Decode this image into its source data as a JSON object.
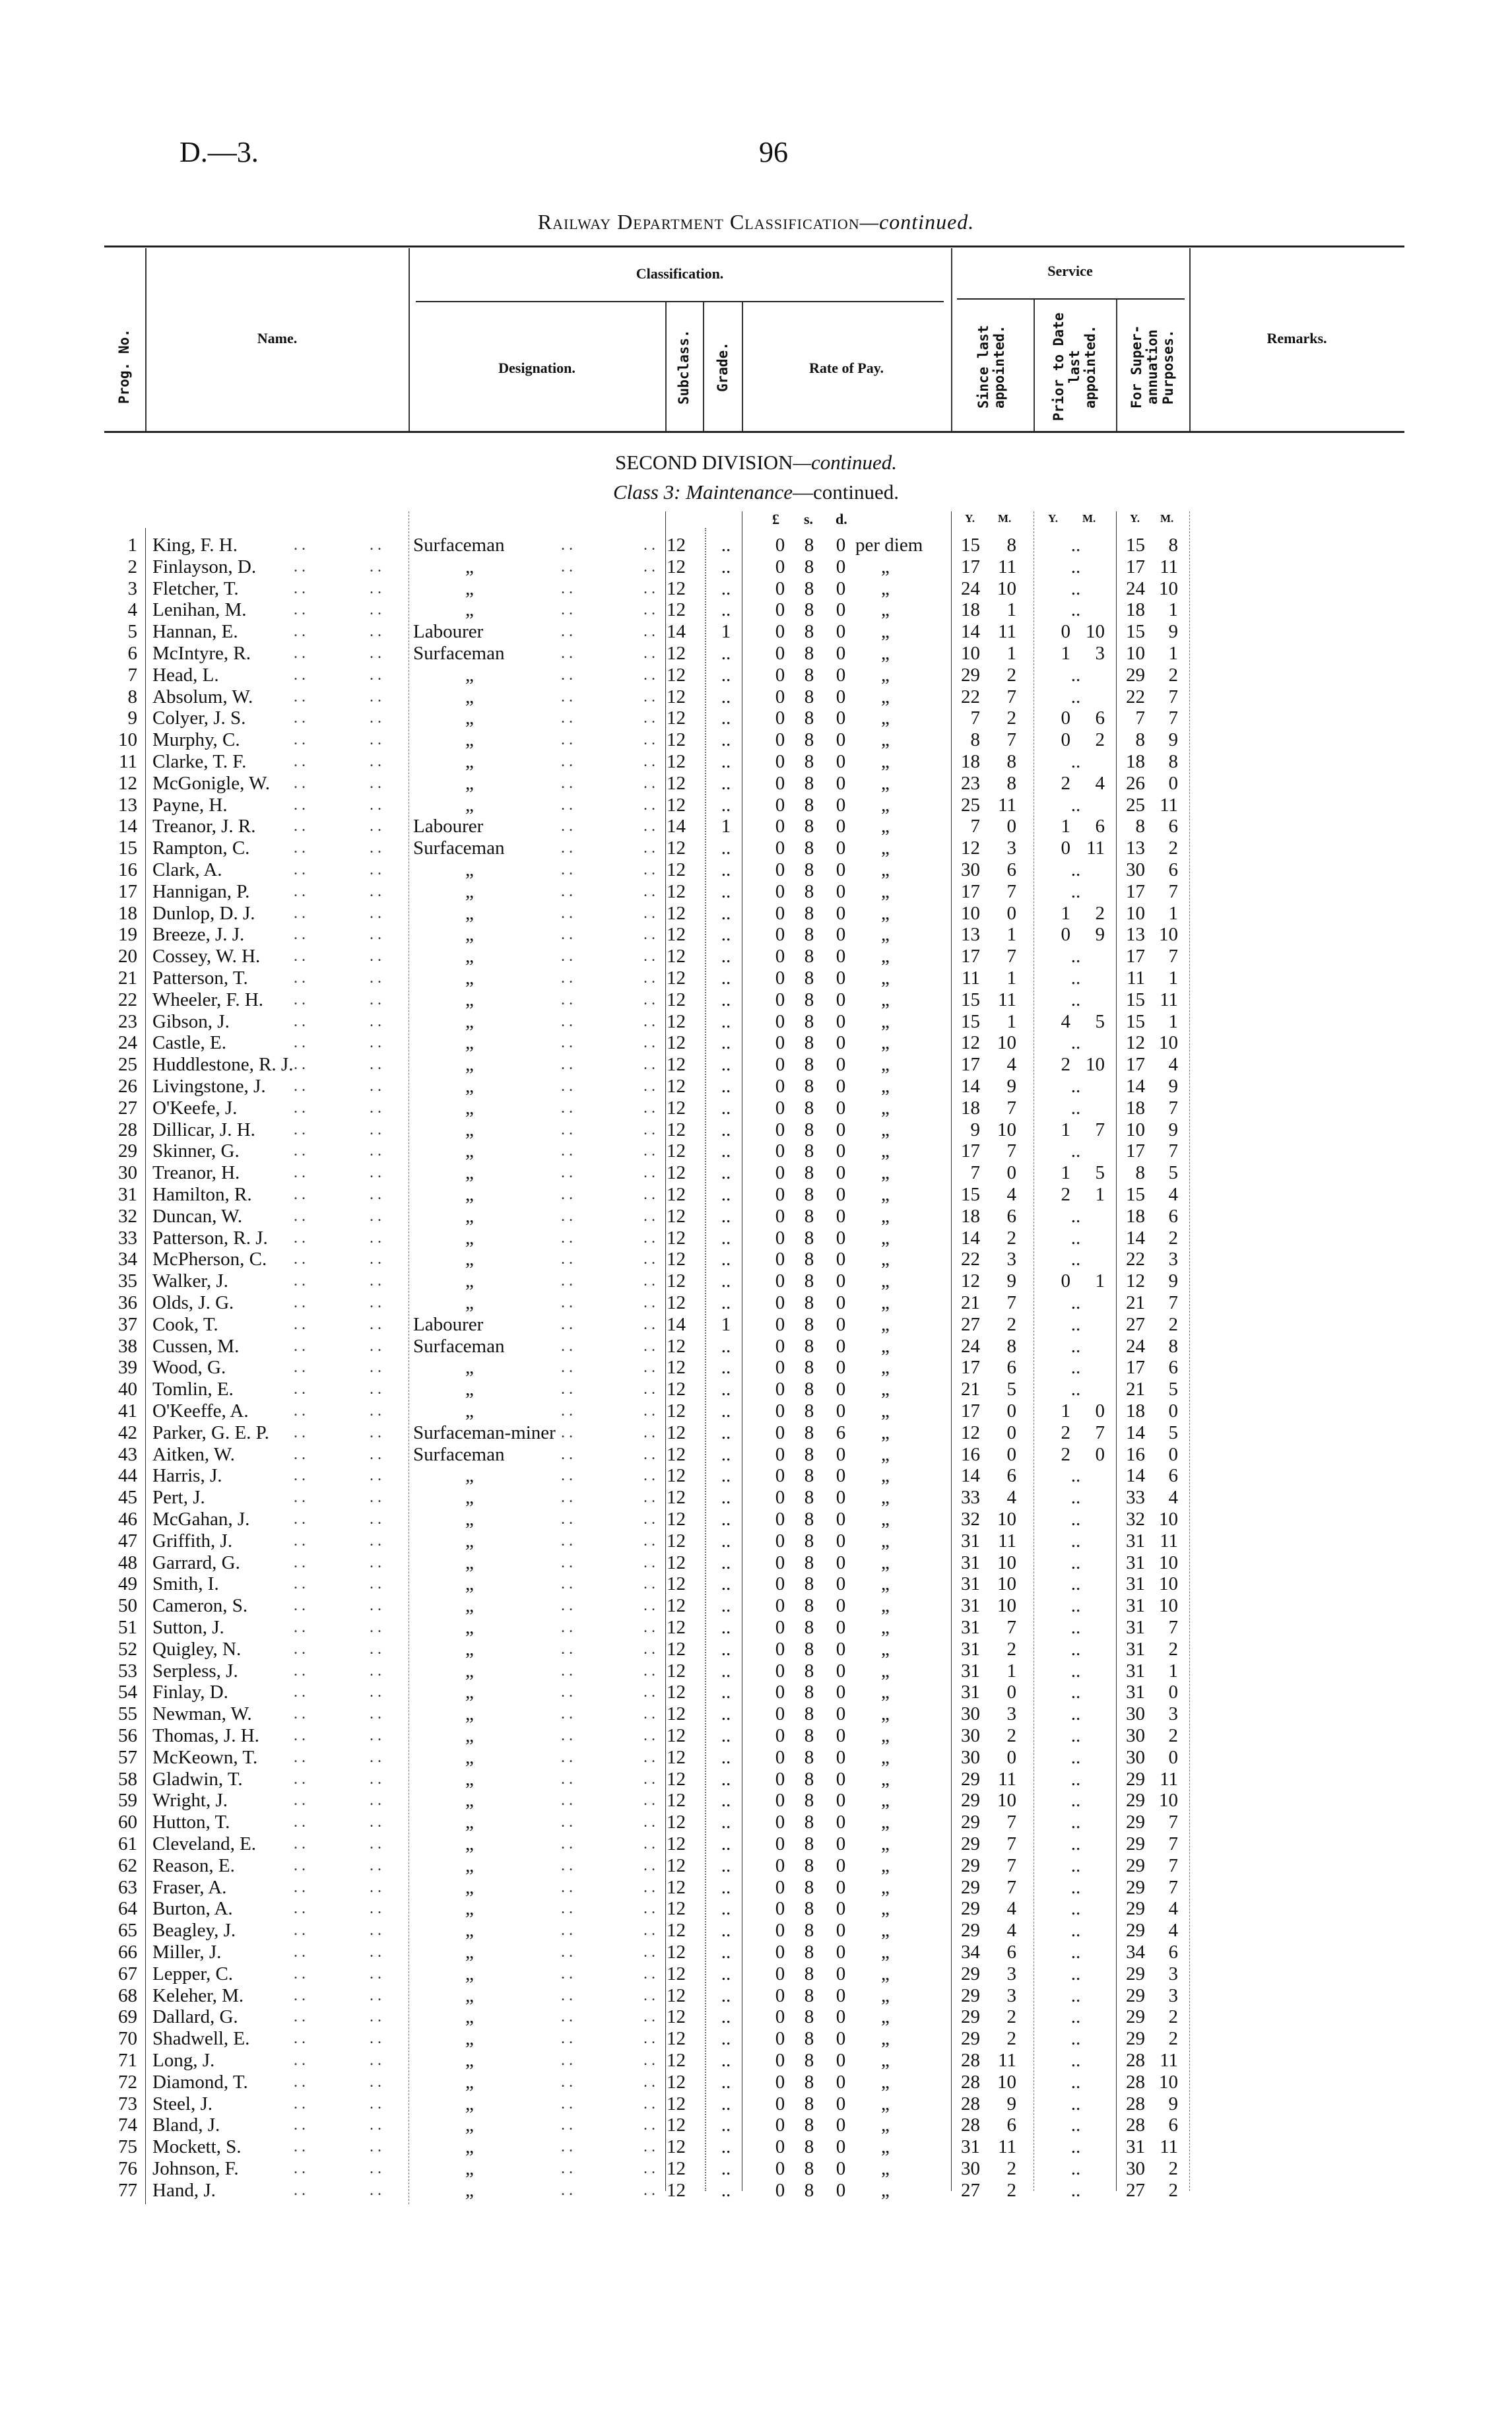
{
  "page_header": {
    "document_ref": "D.—3.",
    "page_number": "96"
  },
  "title": {
    "main": "Railway Department Classification",
    "suffix": "—continued."
  },
  "table_header": {
    "prog_no": "Prog. No.",
    "name": "Name.",
    "classification": "Classification.",
    "designation": "Designation.",
    "subclass": "Subclass.",
    "grade": "Grade.",
    "rate_of_pay": "Rate of Pay.",
    "service": "Service",
    "since_last": "Since last appointed.",
    "prior_to_date": "Prior to Date last appointed.",
    "for_superannuation": "For Super-annuation Purposes.",
    "remarks": "Remarks."
  },
  "section": {
    "division": "SECOND DIVISION",
    "division_suffix": "—continued.",
    "class_prefix": "Class 3:",
    "class_name": "Maintenance",
    "class_suffix": "—continued."
  },
  "units": {
    "pound": "£",
    "shilling": "s.",
    "pence": "d.",
    "years": "Y.",
    "months": "M."
  },
  "ditto": "„",
  "rows": [
    [
      "1",
      "King, F. H.",
      "Surfaceman",
      "12",
      "..",
      "0",
      "8",
      "0",
      "per diem",
      "15",
      "8",
      "..",
      "",
      "15",
      "8"
    ],
    [
      "2",
      "Finlayson, D.",
      "„",
      "12",
      "..",
      "0",
      "8",
      "0",
      "„",
      "17",
      "11",
      "..",
      "",
      "17",
      "11"
    ],
    [
      "3",
      "Fletcher, T.",
      "„",
      "12",
      "..",
      "0",
      "8",
      "0",
      "„",
      "24",
      "10",
      "..",
      "",
      "24",
      "10"
    ],
    [
      "4",
      "Lenihan, M.",
      "„",
      "12",
      "..",
      "0",
      "8",
      "0",
      "„",
      "18",
      "1",
      "..",
      "",
      "18",
      "1"
    ],
    [
      "5",
      "Hannan, E.",
      "Labourer",
      "14",
      "1",
      "0",
      "8",
      "0",
      "„",
      "14",
      "11",
      "0",
      "10",
      "15",
      "9"
    ],
    [
      "6",
      "McIntyre, R.",
      "Surfaceman",
      "12",
      "..",
      "0",
      "8",
      "0",
      "„",
      "10",
      "1",
      "1",
      "3",
      "10",
      "1"
    ],
    [
      "7",
      "Head, L.",
      "„",
      "12",
      "..",
      "0",
      "8",
      "0",
      "„",
      "29",
      "2",
      "..",
      "",
      "29",
      "2"
    ],
    [
      "8",
      "Absolum, W.",
      "„",
      "12",
      "..",
      "0",
      "8",
      "0",
      "„",
      "22",
      "7",
      "..",
      "",
      "22",
      "7"
    ],
    [
      "9",
      "Colyer, J. S.",
      "„",
      "12",
      "..",
      "0",
      "8",
      "0",
      "„",
      "7",
      "2",
      "0",
      "6",
      "7",
      "7"
    ],
    [
      "10",
      "Murphy, C.",
      "„",
      "12",
      "..",
      "0",
      "8",
      "0",
      "„",
      "8",
      "7",
      "0",
      "2",
      "8",
      "9"
    ],
    [
      "11",
      "Clarke, T. F.",
      "„",
      "12",
      "..",
      "0",
      "8",
      "0",
      "„",
      "18",
      "8",
      "..",
      "",
      "18",
      "8"
    ],
    [
      "12",
      "McGonigle, W.",
      "„",
      "12",
      "..",
      "0",
      "8",
      "0",
      "„",
      "23",
      "8",
      "2",
      "4",
      "26",
      "0"
    ],
    [
      "13",
      "Payne, H.",
      "„",
      "12",
      "..",
      "0",
      "8",
      "0",
      "„",
      "25",
      "11",
      "..",
      "",
      "25",
      "11"
    ],
    [
      "14",
      "Treanor, J. R.",
      "Labourer",
      "14",
      "1",
      "0",
      "8",
      "0",
      "„",
      "7",
      "0",
      "1",
      "6",
      "8",
      "6"
    ],
    [
      "15",
      "Rampton, C.",
      "Surfaceman",
      "12",
      "..",
      "0",
      "8",
      "0",
      "„",
      "12",
      "3",
      "0",
      "11",
      "13",
      "2"
    ],
    [
      "16",
      "Clark, A.",
      "„",
      "12",
      "..",
      "0",
      "8",
      "0",
      "„",
      "30",
      "6",
      "..",
      "",
      "30",
      "6"
    ],
    [
      "17",
      "Hannigan, P.",
      "„",
      "12",
      "..",
      "0",
      "8",
      "0",
      "„",
      "17",
      "7",
      "..",
      "",
      "17",
      "7"
    ],
    [
      "18",
      "Dunlop, D. J.",
      "„",
      "12",
      "..",
      "0",
      "8",
      "0",
      "„",
      "10",
      "0",
      "1",
      "2",
      "10",
      "1"
    ],
    [
      "19",
      "Breeze, J. J.",
      "„",
      "12",
      "..",
      "0",
      "8",
      "0",
      "„",
      "13",
      "1",
      "0",
      "9",
      "13",
      "10"
    ],
    [
      "20",
      "Cossey, W. H.",
      "„",
      "12",
      "..",
      "0",
      "8",
      "0",
      "„",
      "17",
      "7",
      "..",
      "",
      "17",
      "7"
    ],
    [
      "21",
      "Patterson, T.",
      "„",
      "12",
      "..",
      "0",
      "8",
      "0",
      "„",
      "11",
      "1",
      "..",
      "",
      "11",
      "1"
    ],
    [
      "22",
      "Wheeler, F. H.",
      "„",
      "12",
      "..",
      "0",
      "8",
      "0",
      "„",
      "15",
      "11",
      "..",
      "",
      "15",
      "11"
    ],
    [
      "23",
      "Gibson, J.",
      "„",
      "12",
      "..",
      "0",
      "8",
      "0",
      "„",
      "15",
      "1",
      "4",
      "5",
      "15",
      "1"
    ],
    [
      "24",
      "Castle, E.",
      "„",
      "12",
      "..",
      "0",
      "8",
      "0",
      "„",
      "12",
      "10",
      "..",
      "",
      "12",
      "10"
    ],
    [
      "25",
      "Huddlestone, R. J.",
      "„",
      "12",
      "..",
      "0",
      "8",
      "0",
      "„",
      "17",
      "4",
      "2",
      "10",
      "17",
      "4"
    ],
    [
      "26",
      "Livingstone, J.",
      "„",
      "12",
      "..",
      "0",
      "8",
      "0",
      "„",
      "14",
      "9",
      "..",
      "",
      "14",
      "9"
    ],
    [
      "27",
      "O'Keefe, J.",
      "„",
      "12",
      "..",
      "0",
      "8",
      "0",
      "„",
      "18",
      "7",
      "..",
      "",
      "18",
      "7"
    ],
    [
      "28",
      "Dillicar, J. H.",
      "„",
      "12",
      "..",
      "0",
      "8",
      "0",
      "„",
      "9",
      "10",
      "1",
      "7",
      "10",
      "9"
    ],
    [
      "29",
      "Skinner, G.",
      "„",
      "12",
      "..",
      "0",
      "8",
      "0",
      "„",
      "17",
      "7",
      "..",
      "",
      "17",
      "7"
    ],
    [
      "30",
      "Treanor, H.",
      "„",
      "12",
      "..",
      "0",
      "8",
      "0",
      "„",
      "7",
      "0",
      "1",
      "5",
      "8",
      "5"
    ],
    [
      "31",
      "Hamilton, R.",
      "„",
      "12",
      "..",
      "0",
      "8",
      "0",
      "„",
      "15",
      "4",
      "2",
      "1",
      "15",
      "4"
    ],
    [
      "32",
      "Duncan, W.",
      "„",
      "12",
      "..",
      "0",
      "8",
      "0",
      "„",
      "18",
      "6",
      "..",
      "",
      "18",
      "6"
    ],
    [
      "33",
      "Patterson, R. J.",
      "„",
      "12",
      "..",
      "0",
      "8",
      "0",
      "„",
      "14",
      "2",
      "..",
      "",
      "14",
      "2"
    ],
    [
      "34",
      "McPherson, C.",
      "„",
      "12",
      "..",
      "0",
      "8",
      "0",
      "„",
      "22",
      "3",
      "..",
      "",
      "22",
      "3"
    ],
    [
      "35",
      "Walker, J.",
      "„",
      "12",
      "..",
      "0",
      "8",
      "0",
      "„",
      "12",
      "9",
      "0",
      "1",
      "12",
      "9"
    ],
    [
      "36",
      "Olds, J. G.",
      "„",
      "12",
      "..",
      "0",
      "8",
      "0",
      "„",
      "21",
      "7",
      "..",
      "",
      "21",
      "7"
    ],
    [
      "37",
      "Cook, T.",
      "Labourer",
      "14",
      "1",
      "0",
      "8",
      "0",
      "„",
      "27",
      "2",
      "..",
      "",
      "27",
      "2"
    ],
    [
      "38",
      "Cussen, M.",
      "Surfaceman",
      "12",
      "..",
      "0",
      "8",
      "0",
      "„",
      "24",
      "8",
      "..",
      "",
      "24",
      "8"
    ],
    [
      "39",
      "Wood, G.",
      "„",
      "12",
      "..",
      "0",
      "8",
      "0",
      "„",
      "17",
      "6",
      "..",
      "",
      "17",
      "6"
    ],
    [
      "40",
      "Tomlin, E.",
      "„",
      "12",
      "..",
      "0",
      "8",
      "0",
      "„",
      "21",
      "5",
      "..",
      "",
      "21",
      "5"
    ],
    [
      "41",
      "O'Keeffe, A.",
      "„",
      "12",
      "..",
      "0",
      "8",
      "0",
      "„",
      "17",
      "0",
      "1",
      "0",
      "18",
      "0"
    ],
    [
      "42",
      "Parker, G. E. P.",
      "Surfaceman-miner",
      "12",
      "..",
      "0",
      "8",
      "6",
      "„",
      "12",
      "0",
      "2",
      "7",
      "14",
      "5"
    ],
    [
      "43",
      "Aitken, W.",
      "Surfaceman",
      "12",
      "..",
      "0",
      "8",
      "0",
      "„",
      "16",
      "0",
      "2",
      "0",
      "16",
      "0"
    ],
    [
      "44",
      "Harris, J.",
      "„",
      "12",
      "..",
      "0",
      "8",
      "0",
      "„",
      "14",
      "6",
      "..",
      "",
      "14",
      "6"
    ],
    [
      "45",
      "Pert, J.",
      "„",
      "12",
      "..",
      "0",
      "8",
      "0",
      "„",
      "33",
      "4",
      "..",
      "",
      "33",
      "4"
    ],
    [
      "46",
      "McGahan, J.",
      "„",
      "12",
      "..",
      "0",
      "8",
      "0",
      "„",
      "32",
      "10",
      "..",
      "",
      "32",
      "10"
    ],
    [
      "47",
      "Griffith, J.",
      "„",
      "12",
      "..",
      "0",
      "8",
      "0",
      "„",
      "31",
      "11",
      "..",
      "",
      "31",
      "11"
    ],
    [
      "48",
      "Garrard, G.",
      "„",
      "12",
      "..",
      "0",
      "8",
      "0",
      "„",
      "31",
      "10",
      "..",
      "",
      "31",
      "10"
    ],
    [
      "49",
      "Smith, I.",
      "„",
      "12",
      "..",
      "0",
      "8",
      "0",
      "„",
      "31",
      "10",
      "..",
      "",
      "31",
      "10"
    ],
    [
      "50",
      "Cameron, S.",
      "„",
      "12",
      "..",
      "0",
      "8",
      "0",
      "„",
      "31",
      "10",
      "..",
      "",
      "31",
      "10"
    ],
    [
      "51",
      "Sutton, J.",
      "„",
      "12",
      "..",
      "0",
      "8",
      "0",
      "„",
      "31",
      "7",
      "..",
      "",
      "31",
      "7"
    ],
    [
      "52",
      "Quigley, N.",
      "„",
      "12",
      "..",
      "0",
      "8",
      "0",
      "„",
      "31",
      "2",
      "..",
      "",
      "31",
      "2"
    ],
    [
      "53",
      "Serpless, J.",
      "„",
      "12",
      "..",
      "0",
      "8",
      "0",
      "„",
      "31",
      "1",
      "..",
      "",
      "31",
      "1"
    ],
    [
      "54",
      "Finlay, D.",
      "„",
      "12",
      "..",
      "0",
      "8",
      "0",
      "„",
      "31",
      "0",
      "..",
      "",
      "31",
      "0"
    ],
    [
      "55",
      "Newman, W.",
      "„",
      "12",
      "..",
      "0",
      "8",
      "0",
      "„",
      "30",
      "3",
      "..",
      "",
      "30",
      "3"
    ],
    [
      "56",
      "Thomas, J. H.",
      "„",
      "12",
      "..",
      "0",
      "8",
      "0",
      "„",
      "30",
      "2",
      "..",
      "",
      "30",
      "2"
    ],
    [
      "57",
      "McKeown, T.",
      "„",
      "12",
      "..",
      "0",
      "8",
      "0",
      "„",
      "30",
      "0",
      "..",
      "",
      "30",
      "0"
    ],
    [
      "58",
      "Gladwin, T.",
      "„",
      "12",
      "..",
      "0",
      "8",
      "0",
      "„",
      "29",
      "11",
      "..",
      "",
      "29",
      "11"
    ],
    [
      "59",
      "Wright, J.",
      "„",
      "12",
      "..",
      "0",
      "8",
      "0",
      "„",
      "29",
      "10",
      "..",
      "",
      "29",
      "10"
    ],
    [
      "60",
      "Hutton, T.",
      "„",
      "12",
      "..",
      "0",
      "8",
      "0",
      "„",
      "29",
      "7",
      "..",
      "",
      "29",
      "7"
    ],
    [
      "61",
      "Cleveland, E.",
      "„",
      "12",
      "..",
      "0",
      "8",
      "0",
      "„",
      "29",
      "7",
      "..",
      "",
      "29",
      "7"
    ],
    [
      "62",
      "Reason, E.",
      "„",
      "12",
      "..",
      "0",
      "8",
      "0",
      "„",
      "29",
      "7",
      "..",
      "",
      "29",
      "7"
    ],
    [
      "63",
      "Fraser, A.",
      "„",
      "12",
      "..",
      "0",
      "8",
      "0",
      "„",
      "29",
      "7",
      "..",
      "",
      "29",
      "7"
    ],
    [
      "64",
      "Burton, A.",
      "„",
      "12",
      "..",
      "0",
      "8",
      "0",
      "„",
      "29",
      "4",
      "..",
      "",
      "29",
      "4"
    ],
    [
      "65",
      "Beagley, J.",
      "„",
      "12",
      "..",
      "0",
      "8",
      "0",
      "„",
      "29",
      "4",
      "..",
      "",
      "29",
      "4"
    ],
    [
      "66",
      "Miller, J.",
      "„",
      "12",
      "..",
      "0",
      "8",
      "0",
      "„",
      "34",
      "6",
      "..",
      "",
      "34",
      "6"
    ],
    [
      "67",
      "Lepper, C.",
      "„",
      "12",
      "..",
      "0",
      "8",
      "0",
      "„",
      "29",
      "3",
      "..",
      "",
      "29",
      "3"
    ],
    [
      "68",
      "Keleher, M.",
      "„",
      "12",
      "..",
      "0",
      "8",
      "0",
      "„",
      "29",
      "3",
      "..",
      "",
      "29",
      "3"
    ],
    [
      "69",
      "Dallard, G.",
      "„",
      "12",
      "..",
      "0",
      "8",
      "0",
      "„",
      "29",
      "2",
      "..",
      "",
      "29",
      "2"
    ],
    [
      "70",
      "Shadwell, E.",
      "„",
      "12",
      "..",
      "0",
      "8",
      "0",
      "„",
      "29",
      "2",
      "..",
      "",
      "29",
      "2"
    ],
    [
      "71",
      "Long, J.",
      "„",
      "12",
      "..",
      "0",
      "8",
      "0",
      "„",
      "28",
      "11",
      "..",
      "",
      "28",
      "11"
    ],
    [
      "72",
      "Diamond, T.",
      "„",
      "12",
      "..",
      "0",
      "8",
      "0",
      "„",
      "28",
      "10",
      "..",
      "",
      "28",
      "10"
    ],
    [
      "73",
      "Steel, J.",
      "„",
      "12",
      "..",
      "0",
      "8",
      "0",
      "„",
      "28",
      "9",
      "..",
      "",
      "28",
      "9"
    ],
    [
      "74",
      "Bland, J.",
      "„",
      "12",
      "..",
      "0",
      "8",
      "0",
      "„",
      "28",
      "6",
      "..",
      "",
      "28",
      "6"
    ],
    [
      "75",
      "Mockett, S.",
      "„",
      "12",
      "..",
      "0",
      "8",
      "0",
      "„",
      "31",
      "11",
      "..",
      "",
      "31",
      "11"
    ],
    [
      "76",
      "Johnson, F.",
      "„",
      "12",
      "..",
      "0",
      "8",
      "0",
      "„",
      "30",
      "2",
      "..",
      "",
      "30",
      "2"
    ],
    [
      "77",
      "Hand, J.",
      "„",
      "12",
      "..",
      "0",
      "8",
      "0",
      "„",
      "27",
      "2",
      "..",
      "",
      "27",
      "2"
    ]
  ]
}
